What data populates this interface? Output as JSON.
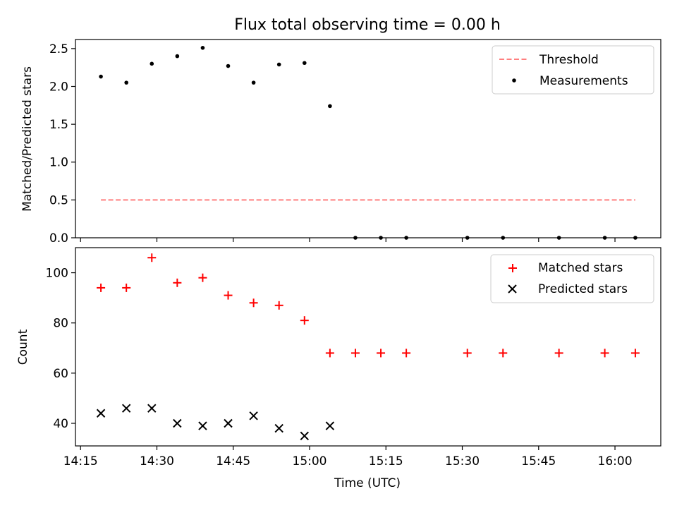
{
  "chart_data": [
    {
      "type": "scatter",
      "title": "Flux total observing time = 0.00 h",
      "xlabel": "",
      "ylabel": "Matched/Predicted stars",
      "ylim": [
        0,
        2.62
      ],
      "yticks": [
        0.0,
        0.5,
        1.0,
        1.5,
        2.0,
        2.5
      ],
      "ytick_labels": [
        "0.0",
        "0.5",
        "1.0",
        "1.5",
        "2.0",
        "2.5"
      ],
      "legend_position": "top-right",
      "series": [
        {
          "name": "Threshold",
          "kind": "line",
          "style": "dashed",
          "color": "#ff7f7f",
          "x": [
            "14:19",
            "16:04"
          ],
          "y": [
            0.5,
            0.5
          ]
        },
        {
          "name": "Measurements",
          "kind": "scatter",
          "marker": "dot",
          "color": "#000000",
          "x": [
            "14:19",
            "14:24",
            "14:29",
            "14:34",
            "14:39",
            "14:44",
            "14:49",
            "14:54",
            "14:59",
            "15:04",
            "15:09",
            "15:14",
            "15:19",
            "15:31",
            "15:38",
            "15:49",
            "15:58",
            "16:04"
          ],
          "y": [
            2.13,
            2.05,
            2.3,
            2.4,
            2.51,
            2.27,
            2.05,
            2.29,
            2.31,
            1.74,
            0,
            0,
            0,
            0,
            0,
            0,
            0,
            0
          ]
        }
      ]
    },
    {
      "type": "scatter",
      "title": "",
      "xlabel": "Time (UTC)",
      "ylabel": "Count",
      "ylim": [
        31,
        110
      ],
      "yticks": [
        40,
        60,
        80,
        100
      ],
      "ytick_labels": [
        "40",
        "60",
        "80",
        "100"
      ],
      "xlim": [
        "14:14",
        "16:09"
      ],
      "xticks": [
        "14:15",
        "14:30",
        "14:45",
        "15:00",
        "15:15",
        "15:30",
        "15:45",
        "16:00"
      ],
      "legend_position": "top-right",
      "series": [
        {
          "name": "Matched stars",
          "kind": "scatter",
          "marker": "plus",
          "color": "#ff0000",
          "x": [
            "14:19",
            "14:24",
            "14:29",
            "14:34",
            "14:39",
            "14:44",
            "14:49",
            "14:54",
            "14:59",
            "15:04",
            "15:09",
            "15:14",
            "15:19",
            "15:31",
            "15:38",
            "15:49",
            "15:58",
            "16:04"
          ],
          "y": [
            94,
            94,
            106,
            96,
            98,
            91,
            88,
            87,
            81,
            68,
            68,
            68,
            68,
            68,
            68,
            68,
            68,
            68
          ]
        },
        {
          "name": "Predicted stars",
          "kind": "scatter",
          "marker": "x",
          "color": "#000000",
          "x": [
            "14:19",
            "14:24",
            "14:29",
            "14:34",
            "14:39",
            "14:44",
            "14:49",
            "14:54",
            "14:59",
            "15:04"
          ],
          "y": [
            44,
            46,
            46,
            40,
            39,
            40,
            43,
            38,
            35,
            39
          ]
        }
      ]
    }
  ]
}
